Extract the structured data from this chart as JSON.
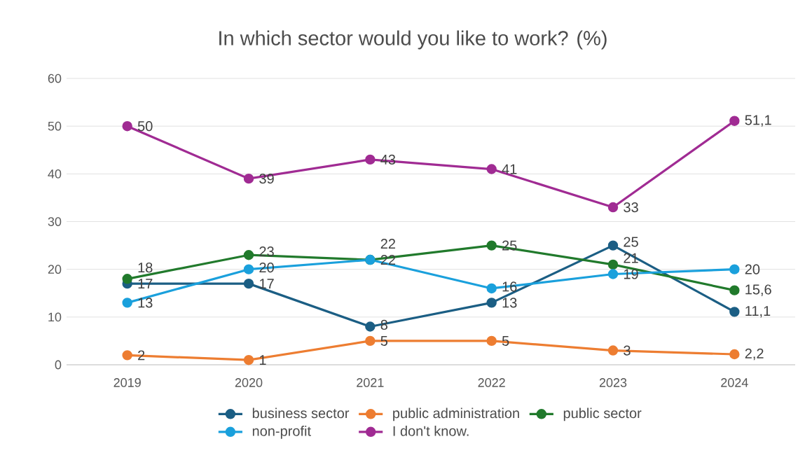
{
  "chart_data": {
    "type": "line",
    "title": "In which sector would you like to work? (%)",
    "categories": [
      "2019",
      "2020",
      "2021",
      "2022",
      "2023",
      "2024"
    ],
    "series": [
      {
        "name": "business sector",
        "color": "#1b5e84",
        "values": [
          17,
          17,
          8,
          13,
          25,
          11.1
        ],
        "value_labels": [
          "17",
          "17",
          "8",
          "13",
          "25",
          "11,1"
        ]
      },
      {
        "name": "public administration",
        "color": "#ed7d31",
        "values": [
          2,
          1,
          5,
          5,
          3,
          2.2
        ],
        "value_labels": [
          "2",
          "1",
          "5",
          "5",
          "3",
          "2,2"
        ]
      },
      {
        "name": "public sector",
        "color": "#217a2c",
        "values": [
          18,
          23,
          22,
          25,
          21,
          15.6
        ],
        "value_labels": [
          "18",
          "23",
          "22",
          "25",
          "21",
          "15,6"
        ]
      },
      {
        "name": "non-profit",
        "color": "#1aa0dc",
        "values": [
          13,
          20,
          22,
          16,
          19,
          20
        ],
        "value_labels": [
          "13",
          "20",
          "22",
          "16",
          "19",
          "20"
        ]
      },
      {
        "name": "I don't know.",
        "color": "#a02b93",
        "values": [
          50,
          39,
          43,
          41,
          33,
          51.1
        ],
        "value_labels": [
          "50",
          "39",
          "43",
          "41",
          "33",
          "51,1"
        ]
      }
    ],
    "ylim": [
      0,
      60
    ],
    "yticks": [
      0,
      10,
      20,
      30,
      40,
      50,
      60
    ],
    "grid": "y",
    "legend": "bottom",
    "marker": "circle",
    "line_style": "solid"
  }
}
